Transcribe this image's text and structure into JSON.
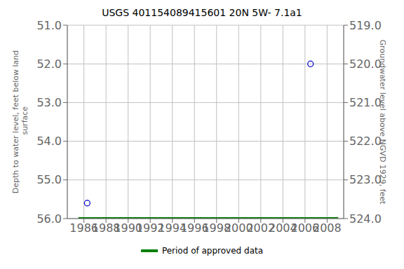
{
  "chart_data": {
    "type": "scatter",
    "title": "USGS 401154089415601 20N 5W- 7.1a1",
    "ylabel": "Depth to water level, feet below land\n surface",
    "y2label": "Groundwater level above NGVD 1929, feet",
    "xlim": [
      1984.5,
      2009.5
    ],
    "xticks": [
      1986,
      1988,
      1990,
      1992,
      1994,
      1996,
      1998,
      2000,
      2002,
      2004,
      2006,
      2008
    ],
    "ylim": [
      56.0,
      51.0
    ],
    "yticks": [
      {
        "value": 51.0,
        "label": "51.0"
      },
      {
        "value": 52.0,
        "label": "52.0"
      },
      {
        "value": 53.0,
        "label": "53.0"
      },
      {
        "value": 54.0,
        "label": "54.0"
      },
      {
        "value": 55.0,
        "label": "55.0"
      },
      {
        "value": 56.0,
        "label": "56.0"
      }
    ],
    "y2lim": [
      524.0,
      519.0
    ],
    "y2ticks": [
      {
        "value": 524.0,
        "label": "524.0"
      },
      {
        "value": 523.0,
        "label": "523.0"
      },
      {
        "value": 522.0,
        "label": "522.0"
      },
      {
        "value": 521.0,
        "label": "521.0"
      },
      {
        "value": 520.0,
        "label": "520.0"
      },
      {
        "value": 519.0,
        "label": "519.0"
      }
    ],
    "grid": true,
    "series": [
      {
        "type": "scatter",
        "color": "#0000cc",
        "marker": "open_circle",
        "x": [
          1986.3,
          2006.5
        ],
        "values": [
          55.6,
          52.0
        ]
      },
      {
        "type": "line",
        "name": "Period of approved data",
        "color": "#008000",
        "x": [
          1985.5,
          2009.0
        ],
        "values": [
          56.0,
          56.0
        ]
      }
    ]
  }
}
